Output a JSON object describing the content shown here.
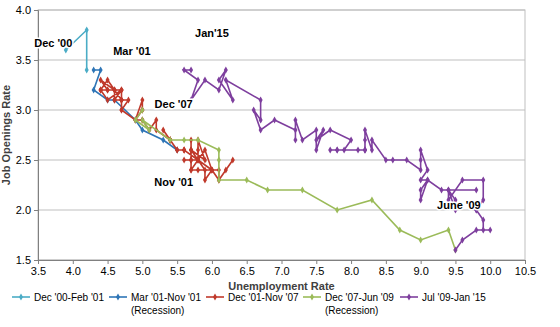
{
  "chart_data": {
    "type": "line",
    "marker": "diamond",
    "x_label": "Unemployment Rate",
    "y_label": "Job Openings Rate",
    "xlim": [
      3.5,
      10.5
    ],
    "ylim": [
      1.5,
      4.0
    ],
    "xticks": [
      3.5,
      {
        "value": 4,
        "label": "4.0"
      },
      4.5,
      {
        "value": 5,
        "label": "5.0"
      },
      5.5,
      {
        "value": 6,
        "label": "6.0"
      },
      6.5,
      {
        "value": 7,
        "label": "7.0"
      },
      7.5,
      {
        "value": 8,
        "label": "8.0"
      },
      8.5,
      {
        "value": 9,
        "label": "9.0"
      },
      9.5,
      {
        "value": 10,
        "label": "10.0"
      },
      10.5
    ],
    "yticks": [
      1.5,
      {
        "value": 2,
        "label": "2.0"
      },
      2.5,
      {
        "value": 3,
        "label": "3.0"
      },
      3.5,
      {
        "value": 4,
        "label": "4.0"
      }
    ],
    "grid": true,
    "legend": "bottom",
    "series": [
      {
        "name": "Dec '00-Feb '01",
        "color": "#4bacc6",
        "x": [
          3.9,
          4.2,
          4.2
        ],
        "values": [
          3.6,
          3.8,
          3.4
        ]
      },
      {
        "name": "Mar '01-Nov '01 (Recession)",
        "color": "#2e75b6",
        "x": [
          4.3,
          4.4,
          4.3,
          4.5,
          4.6,
          4.9,
          5.0,
          5.3,
          5.5
        ],
        "values": [
          3.4,
          3.4,
          3.2,
          3.1,
          3.1,
          2.9,
          2.8,
          2.7,
          2.6
        ]
      },
      {
        "name": "Dec '01-Nov '07",
        "color": "#c0392b",
        "x": [
          5.7,
          5.7,
          5.7,
          5.7,
          5.9,
          5.8,
          5.8,
          5.8,
          5.7,
          5.7,
          5.7,
          5.9,
          6.0,
          5.8,
          5.9,
          5.9,
          6.0,
          6.1,
          6.3,
          6.2,
          6.1,
          6.1,
          6.0,
          5.8,
          5.7,
          5.7,
          5.6,
          5.8,
          5.6,
          5.6,
          5.6,
          5.5,
          5.4,
          5.4,
          5.5,
          5.4,
          5.4,
          5.3,
          5.4,
          5.2,
          5.2,
          5.1,
          5.0,
          5.0,
          4.9,
          5.0,
          5.0,
          5.0,
          4.9,
          4.7,
          4.8,
          4.7,
          4.7,
          4.6,
          4.6,
          4.7,
          4.7,
          4.5,
          4.4,
          4.5,
          4.4,
          4.6,
          4.5,
          4.4,
          4.5,
          4.4,
          4.6,
          4.7,
          4.6,
          4.7,
          4.7,
          4.7
        ],
        "values": [
          2.5,
          2.6,
          2.7,
          2.6,
          2.5,
          2.7,
          2.6,
          2.5,
          2.6,
          2.5,
          2.4,
          2.6,
          2.4,
          2.5,
          2.4,
          2.3,
          2.4,
          2.3,
          2.5,
          2.4,
          2.3,
          2.4,
          2.4,
          2.4,
          2.4,
          2.5,
          2.5,
          2.5,
          2.6,
          2.6,
          2.6,
          2.6,
          2.7,
          2.7,
          2.6,
          2.7,
          2.7,
          2.8,
          2.7,
          2.8,
          2.9,
          2.8,
          2.9,
          2.9,
          2.9,
          3.0,
          3.0,
          3.1,
          2.9,
          3.0,
          3.1,
          3.1,
          3.2,
          3.2,
          3.1,
          3.2,
          3.2,
          3.1,
          3.2,
          3.2,
          3.2,
          3.2,
          3.3,
          3.2,
          3.2,
          3.3,
          3.2,
          3.1,
          3.1,
          3.1,
          3.1,
          3.0
        ]
      },
      {
        "name": "Dec '07-Jun '09 (Recession)",
        "color": "#9bbb59",
        "x": [
          5.0,
          4.9,
          5.1,
          5.0,
          5.4,
          5.6,
          5.8,
          6.1,
          6.1,
          6.1,
          6.5,
          6.8,
          7.3,
          7.8,
          8.3,
          8.7,
          9.0,
          9.4,
          9.5
        ],
        "values": [
          3.0,
          2.9,
          2.8,
          2.9,
          2.7,
          2.7,
          2.7,
          2.6,
          2.5,
          2.3,
          2.3,
          2.2,
          2.2,
          2.0,
          2.1,
          1.8,
          1.7,
          1.8,
          1.6
        ]
      },
      {
        "name": "Jul '09-Jan '15",
        "color": "#7e3f9e",
        "x": [
          9.5,
          9.6,
          9.8,
          10.0,
          9.9,
          9.9,
          9.8,
          9.8,
          9.9,
          9.9,
          9.6,
          9.4,
          9.4,
          9.5,
          9.5,
          9.4,
          9.8,
          9.3,
          9.1,
          9.0,
          9.0,
          9.1,
          9.0,
          9.1,
          9.0,
          9.0,
          9.0,
          8.8,
          8.6,
          8.5,
          8.3,
          8.3,
          8.2,
          8.2,
          8.2,
          8.2,
          8.2,
          8.1,
          7.8,
          7.8,
          7.7,
          7.9,
          8.0,
          7.7,
          7.5,
          7.6,
          7.5,
          7.5,
          7.3,
          7.2,
          7.2,
          7.2,
          6.9,
          6.7,
          6.6,
          6.7,
          6.7,
          6.2,
          6.3,
          6.1,
          6.2,
          6.1,
          5.9,
          5.7,
          5.8,
          5.6,
          5.7
        ],
        "values": [
          1.6,
          1.7,
          1.8,
          1.8,
          1.8,
          1.9,
          2.0,
          2.0,
          2.1,
          2.3,
          2.3,
          2.1,
          2.2,
          2.1,
          2.0,
          2.2,
          2.2,
          2.2,
          2.3,
          2.1,
          2.2,
          2.3,
          2.3,
          2.4,
          2.6,
          2.5,
          2.4,
          2.5,
          2.5,
          2.5,
          2.7,
          2.6,
          2.8,
          2.6,
          2.6,
          2.7,
          2.6,
          2.6,
          2.6,
          2.6,
          2.6,
          2.6,
          2.7,
          2.8,
          2.7,
          2.8,
          2.6,
          2.8,
          2.7,
          2.9,
          2.7,
          2.8,
          2.9,
          2.8,
          3.0,
          2.9,
          3.1,
          3.3,
          3.1,
          3.3,
          3.4,
          3.2,
          3.3,
          3.1,
          3.3,
          3.4,
          3.4
        ]
      }
    ],
    "annotations": [
      {
        "text": "Dec '00",
        "x": 3.72,
        "y": 3.66
      },
      {
        "text": "Mar '01",
        "x": 4.85,
        "y": 3.58
      },
      {
        "text": "Jan'15",
        "x": 6.0,
        "y": 3.76
      },
      {
        "text": "Dec '07",
        "x": 5.45,
        "y": 3.05
      },
      {
        "text": "Nov '01",
        "x": 5.45,
        "y": 2.27
      },
      {
        "text": "June '09",
        "x": 9.55,
        "y": 2.04
      }
    ]
  }
}
